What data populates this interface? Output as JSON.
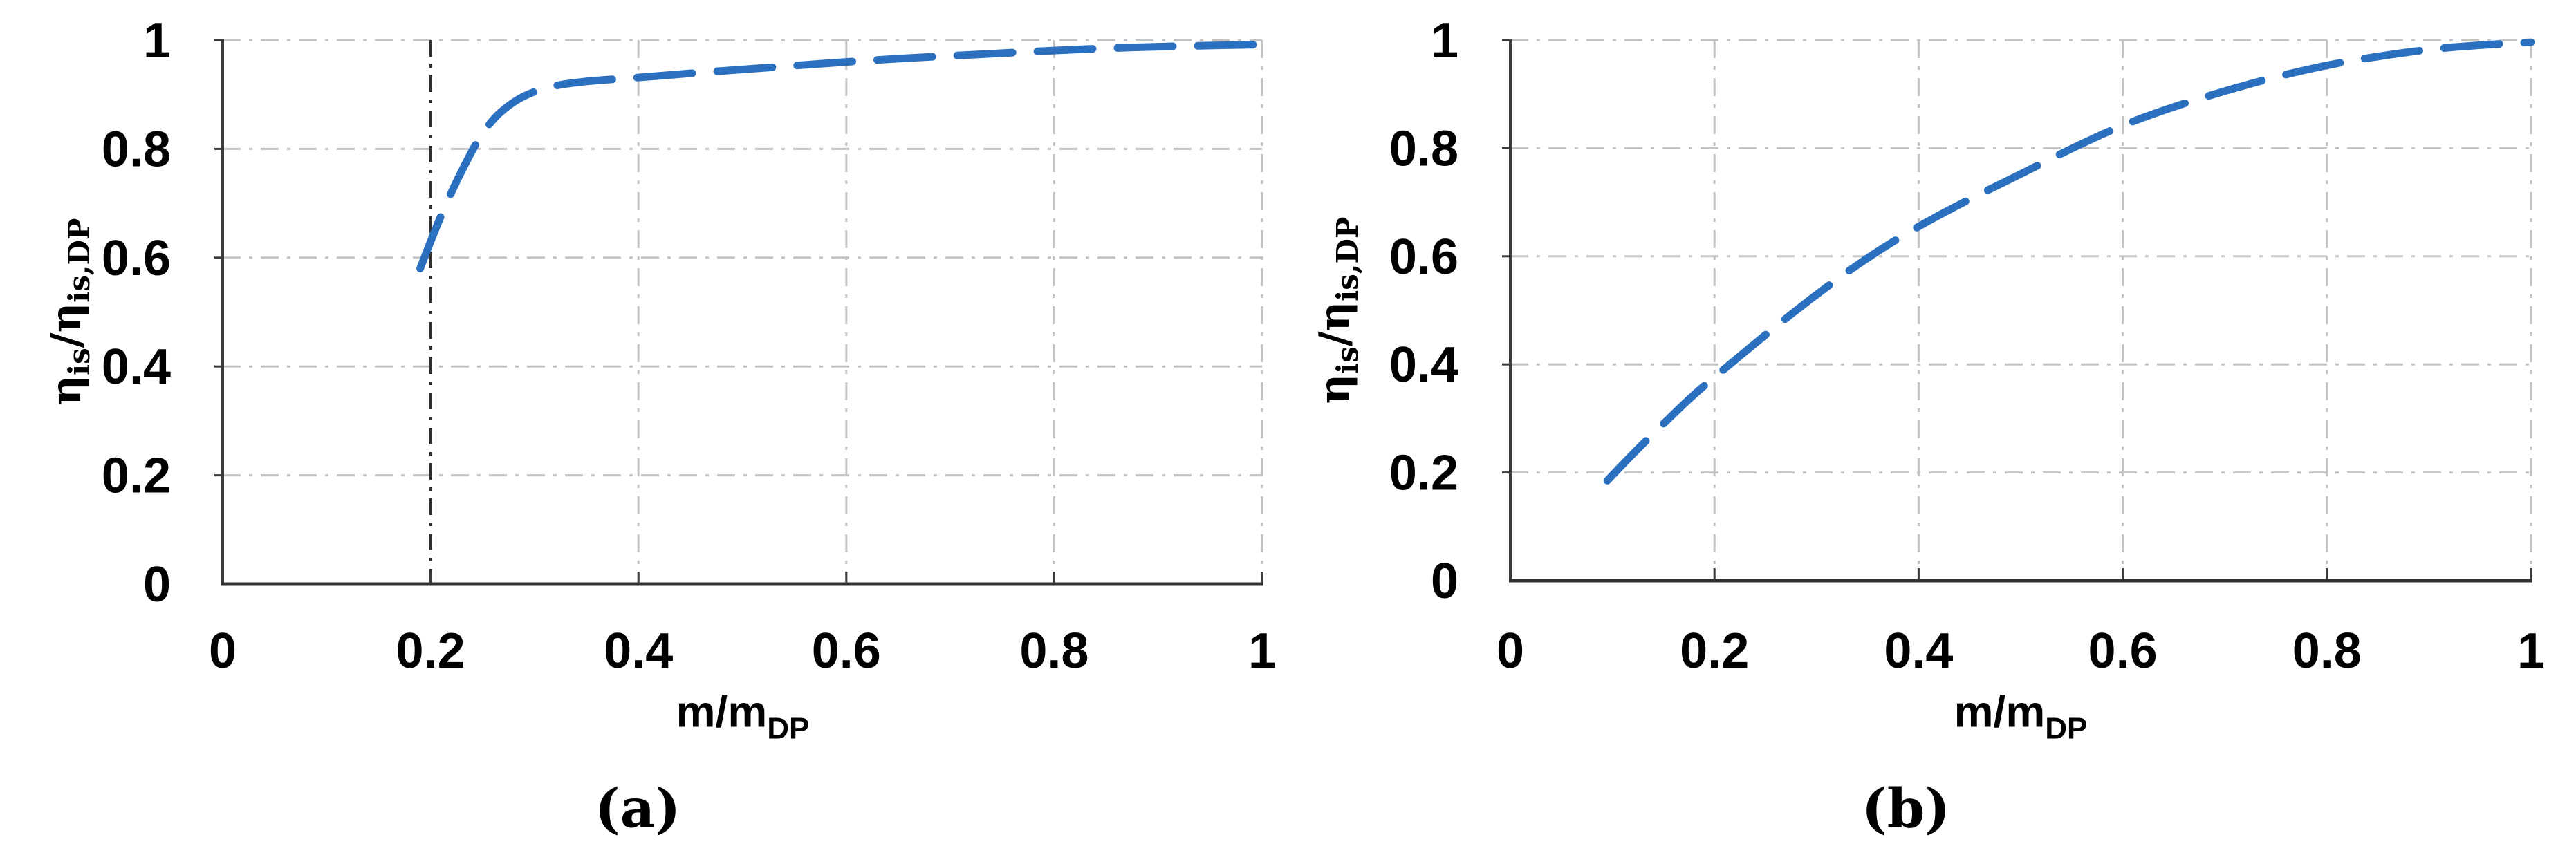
{
  "figure": {
    "background": "#FFFFFF",
    "colors": {
      "curve": "#2B6FBF",
      "grid": "#C3C3C3",
      "axis": "#3C3C3C",
      "axis_bottom": "#303030",
      "surge_line": "#2F2F2F",
      "text": "#000000"
    }
  },
  "axis_labels": {
    "eta": "η",
    "sub_is": "is",
    "slash": "/",
    "sub_is_dp": "is,DP",
    "x_base": "m/m",
    "x_sub": "DP"
  },
  "chart_data": [
    {
      "id": "a",
      "panel_label": "(a)",
      "type": "line",
      "title": "",
      "xlabel": "m/m_DP",
      "ylabel": "η_is/η_is,DP",
      "xlim": [
        0,
        1
      ],
      "ylim": [
        0,
        1
      ],
      "x_tick_labels": [
        "0",
        "0.2",
        "0.4",
        "0.6",
        "0.8",
        "1"
      ],
      "y_tick_labels": [
        "0",
        "0.2",
        "0.4",
        "0.6",
        "0.8",
        "1"
      ],
      "grid": true,
      "grid_style": "dash-dot-gray",
      "line_style": "long-dash",
      "legend": null,
      "annotations": [
        {
          "type": "vline",
          "x": 0.2,
          "style": "dash-dot-black"
        }
      ],
      "series": [
        {
          "name": "η_is/η_is,DP",
          "x": [
            0.19,
            0.2,
            0.215,
            0.23,
            0.245,
            0.26,
            0.275,
            0.29,
            0.31,
            0.33,
            0.36,
            0.4,
            0.45,
            0.5,
            0.55,
            0.6,
            0.65,
            0.7,
            0.75,
            0.8,
            0.85,
            0.9,
            0.95,
            1.0
          ],
          "y": [
            0.58,
            0.63,
            0.7,
            0.76,
            0.815,
            0.855,
            0.88,
            0.898,
            0.912,
            0.92,
            0.926,
            0.931,
            0.939,
            0.946,
            0.953,
            0.96,
            0.966,
            0.971,
            0.976,
            0.981,
            0.985,
            0.988,
            0.99,
            0.992
          ]
        }
      ]
    },
    {
      "id": "b",
      "panel_label": "(b)",
      "type": "line",
      "title": "",
      "xlabel": "m/m_DP",
      "ylabel": "η_is/η_is,DP",
      "xlim": [
        0,
        1
      ],
      "ylim": [
        0,
        1
      ],
      "x_tick_labels": [
        "0",
        "0.2",
        "0.4",
        "0.6",
        "0.8",
        "1"
      ],
      "y_tick_labels": [
        "0",
        "0.2",
        "0.4",
        "0.6",
        "0.8",
        "1"
      ],
      "grid": true,
      "grid_style": "dash-dot-gray",
      "line_style": "long-dash",
      "legend": null,
      "annotations": [],
      "series": [
        {
          "name": "η_is/η_is,DP",
          "x": [
            0.095,
            0.12,
            0.15,
            0.18,
            0.21,
            0.25,
            0.3,
            0.35,
            0.4,
            0.45,
            0.5,
            0.55,
            0.6,
            0.65,
            0.7,
            0.75,
            0.8,
            0.85,
            0.9,
            0.95,
            1.0
          ],
          "y": [
            0.185,
            0.235,
            0.29,
            0.345,
            0.392,
            0.455,
            0.53,
            0.598,
            0.656,
            0.706,
            0.752,
            0.8,
            0.843,
            0.877,
            0.906,
            0.932,
            0.954,
            0.97,
            0.983,
            0.991,
            0.996
          ]
        }
      ]
    }
  ]
}
